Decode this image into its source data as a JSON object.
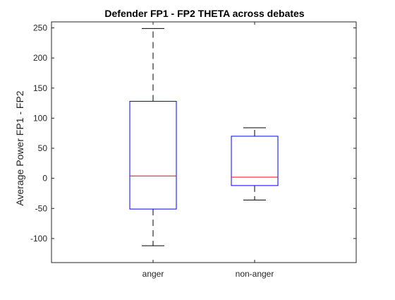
{
  "chart_data": {
    "type": "boxplot",
    "title": "Defender FP1 - FP2 THETA across debates",
    "xlabel": "",
    "ylabel": "Average Power FP1 - FP2",
    "ylim": [
      -140,
      260
    ],
    "yticks": [
      -100,
      -50,
      0,
      50,
      100,
      150,
      200,
      250
    ],
    "ytick_labels": [
      "-100",
      "-50",
      "0",
      "50",
      "100",
      "150",
      "200",
      "250"
    ],
    "categories": [
      "anger",
      "non-anger"
    ],
    "boxes": [
      {
        "category": "anger",
        "whisker_low": -112,
        "q1": -51,
        "median": 4,
        "q3": 128,
        "whisker_high": 249
      },
      {
        "category": "non-anger",
        "whisker_low": -36,
        "q1": -12,
        "median": 2,
        "q3": 70,
        "whisker_high": 84
      }
    ],
    "grid": false,
    "colors": {
      "box": "#0000ff",
      "median": "#ff0000",
      "whisker": "#000000",
      "axis": "#262626"
    }
  }
}
